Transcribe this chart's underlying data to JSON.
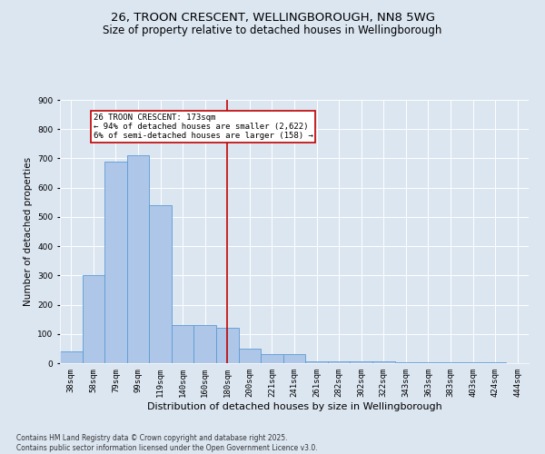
{
  "title": "26, TROON CRESCENT, WELLINGBOROUGH, NN8 5WG",
  "subtitle": "Size of property relative to detached houses in Wellingborough",
  "xlabel": "Distribution of detached houses by size in Wellingborough",
  "ylabel": "Number of detached properties",
  "categories": [
    "38sqm",
    "58sqm",
    "79sqm",
    "99sqm",
    "119sqm",
    "140sqm",
    "160sqm",
    "180sqm",
    "200sqm",
    "221sqm",
    "241sqm",
    "261sqm",
    "282sqm",
    "302sqm",
    "322sqm",
    "343sqm",
    "363sqm",
    "383sqm",
    "403sqm",
    "424sqm",
    "444sqm"
  ],
  "values": [
    40,
    300,
    690,
    710,
    540,
    130,
    130,
    120,
    50,
    30,
    30,
    5,
    5,
    5,
    5,
    3,
    3,
    3,
    2,
    2,
    1
  ],
  "bar_color": "#aec6e8",
  "bar_edge_color": "#5b9bd5",
  "vline_x_index": 7,
  "vline_color": "#c00000",
  "annotation_text": "26 TROON CRESCENT: 173sqm\n← 94% of detached houses are smaller (2,622)\n6% of semi-detached houses are larger (158) →",
  "annotation_box_color": "#c00000",
  "ylim": [
    0,
    900
  ],
  "yticks": [
    0,
    100,
    200,
    300,
    400,
    500,
    600,
    700,
    800,
    900
  ],
  "background_color": "#dce6f1",
  "plot_bg_color": "#dce6f1",
  "footer": "Contains HM Land Registry data © Crown copyright and database right 2025.\nContains public sector information licensed under the Open Government Licence v3.0.",
  "title_fontsize": 9.5,
  "subtitle_fontsize": 8.5,
  "xlabel_fontsize": 8,
  "ylabel_fontsize": 7.5,
  "annotation_fontsize": 6.5,
  "tick_fontsize": 6.5,
  "footer_fontsize": 5.5
}
